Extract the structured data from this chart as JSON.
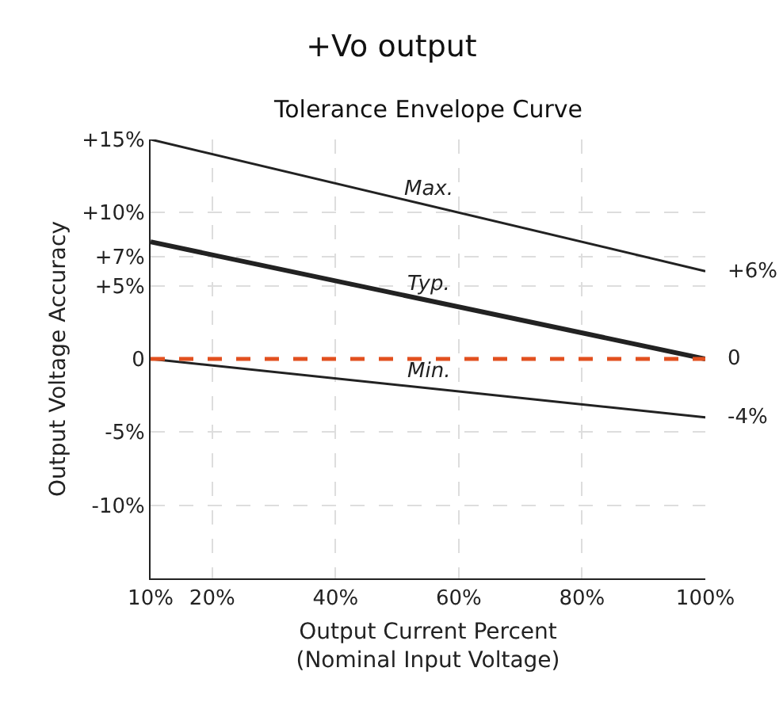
{
  "chart_data": {
    "type": "line",
    "title": "+Vo output",
    "subtitle": "Tolerance Envelope Curve",
    "xlabel": "Output Current Percent\n(Nominal Input Voltage)",
    "ylabel": "Output Voltage Accuracy",
    "x": [
      10,
      100
    ],
    "series": [
      {
        "name": "Max.",
        "color": "#222222",
        "values": [
          15,
          6
        ],
        "value_labels": [
          null,
          "+6%"
        ]
      },
      {
        "name": "Typ.",
        "color": "#222222",
        "values": [
          8,
          0
        ],
        "value_labels": [
          null,
          "0"
        ]
      },
      {
        "name": "Min.",
        "color": "#222222",
        "values": [
          0,
          -4
        ],
        "value_labels": [
          null,
          "-4%"
        ]
      }
    ],
    "xlim": [
      10,
      100
    ],
    "xticks": [
      {
        "value": 10,
        "label": "10%"
      },
      {
        "value": 20,
        "label": "20%"
      },
      {
        "value": 40,
        "label": "40%"
      },
      {
        "value": 60,
        "label": "60%"
      },
      {
        "value": 80,
        "label": "80%"
      },
      {
        "value": 100,
        "label": "100%"
      }
    ],
    "ylim": [
      -15,
      15
    ],
    "yticks": [
      {
        "value": 15,
        "label": "+15%"
      },
      {
        "value": 10,
        "label": "+10%"
      },
      {
        "value": 7,
        "label": "+7%"
      },
      {
        "value": 5,
        "label": "+5%"
      },
      0,
      {
        "value": -5,
        "label": "-5%"
      },
      {
        "value": -10,
        "label": "-10%"
      }
    ],
    "ref_lines": [
      {
        "axis": "y",
        "value": 0,
        "color": "#e2501f",
        "line_style": "dashed"
      }
    ],
    "grid": true,
    "legend": false,
    "marker": "none",
    "line_style": "solid"
  }
}
